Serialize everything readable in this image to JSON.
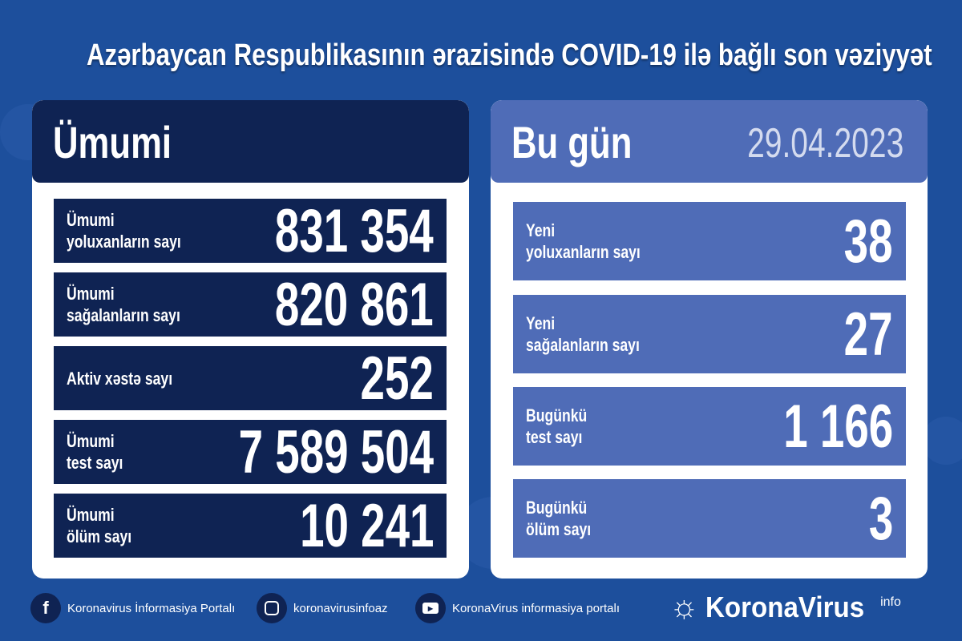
{
  "title": "Azərbaycan Respublikasının ərazisində COVID-19 ilə bağlı son vəziyyət",
  "overall": {
    "heading": "Ümumi",
    "rows": [
      {
        "label1": "Ümumi",
        "label2": "yoluxanların sayı",
        "value": "831 354"
      },
      {
        "label1": "Ümumi",
        "label2": "sağalanların sayı",
        "value": "820 861"
      },
      {
        "label1": "Aktiv xəstə sayı",
        "label2": "",
        "value": "252"
      },
      {
        "label1": "Ümumi",
        "label2": "test sayı",
        "value": "7 589 504"
      },
      {
        "label1": "Ümumi",
        "label2": "ölüm sayı",
        "value": "10 241"
      }
    ]
  },
  "today": {
    "heading": "Bu gün",
    "date": "29.04.2023",
    "rows": [
      {
        "label1": "Yeni",
        "label2": "yoluxanların sayı",
        "value": "38"
      },
      {
        "label1": "Yeni",
        "label2": "sağalanların sayı",
        "value": "27"
      },
      {
        "label1": "Bugünkü",
        "label2": "test sayı",
        "value": "1 166"
      },
      {
        "label1": "Bugünkü",
        "label2": "ölüm sayı",
        "value": "3"
      }
    ]
  },
  "footer": {
    "facebook": "Koronavirus İnformasiya Portalı",
    "instagram": "koronavirusinfoaz",
    "youtube": "KoronaVirus informasiya portalı",
    "brand": "KoronaVirus",
    "brand_sup": "info"
  },
  "colors": {
    "background": "#1d4f9c",
    "dark_panel": "#0f2353",
    "light_panel": "#4f6cb7"
  }
}
